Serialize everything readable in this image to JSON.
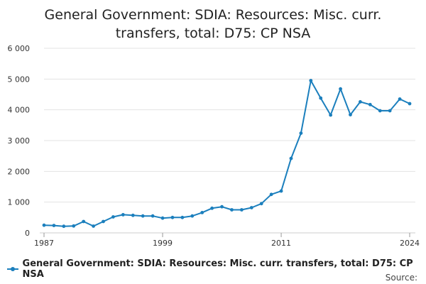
{
  "chart_data": {
    "type": "line",
    "title": "General Government: SDIA: Resources: Misc. curr. transfers, total: D75: CP NSA",
    "xlabel": "",
    "ylabel": "",
    "x_ticks": [
      "1987",
      "1999",
      "2011",
      "2024"
    ],
    "y_ticks": [
      "0",
      "1 000",
      "2 000",
      "3 000",
      "4 000",
      "5 000",
      "6 000"
    ],
    "ylim": [
      0,
      6000
    ],
    "xlim": [
      1987,
      2024
    ],
    "grid": true,
    "legend_position": "bottom-left",
    "series": [
      {
        "name": "General Government: SDIA: Resources: Misc. curr. transfers, total: D75: CP NSA",
        "color": "#1b7fbd",
        "x": [
          1987,
          1988,
          1989,
          1990,
          1991,
          1992,
          1993,
          1994,
          1995,
          1996,
          1997,
          1998,
          1999,
          2000,
          2001,
          2002,
          2003,
          2004,
          2005,
          2006,
          2007,
          2008,
          2009,
          2010,
          2011,
          2012,
          2013,
          2014,
          2015,
          2016,
          2017,
          2018,
          2019,
          2020,
          2021,
          2022,
          2023,
          2024
        ],
        "values": [
          250,
          240,
          215,
          225,
          370,
          220,
          370,
          520,
          590,
          570,
          550,
          550,
          480,
          500,
          500,
          550,
          660,
          800,
          850,
          750,
          750,
          820,
          950,
          1250,
          1360,
          2420,
          3240,
          4950,
          4380,
          3830,
          4680,
          3840,
          4260,
          4170,
          3970,
          3970,
          4350,
          4200
        ]
      }
    ]
  },
  "legend": {
    "label": "General Government: SDIA: Resources: Misc. curr. transfers, total: D75: CP NSA"
  },
  "footer": {
    "source_label": "Source:"
  }
}
